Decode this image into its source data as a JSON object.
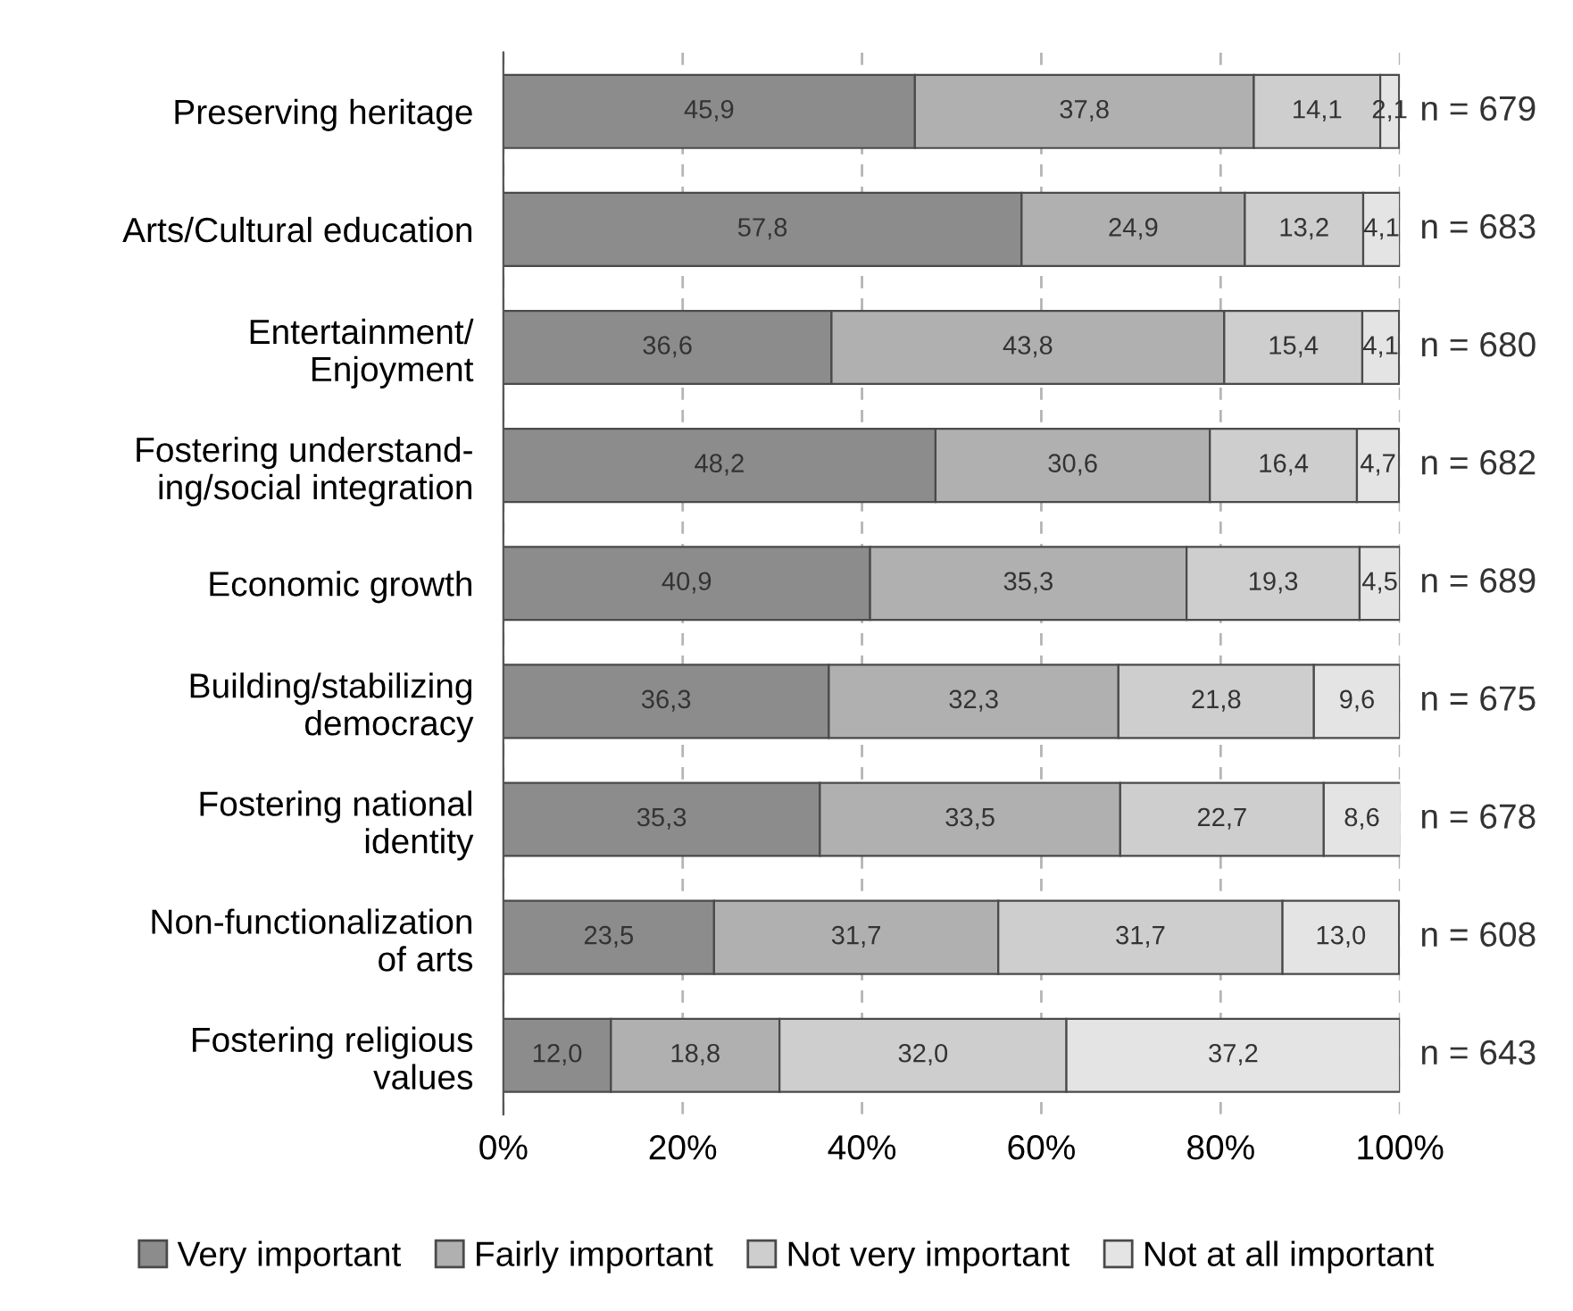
{
  "chart_data": {
    "type": "bar",
    "orientation": "horizontal",
    "stacked": true,
    "categories": [
      "Preserving heritage",
      "Arts/Cultural education",
      "Entertainment/\nEnjoyment",
      "Fostering understand-\ning/social integration",
      "Economic growth",
      "Building/stabilizing\ndemocracy",
      "Fostering national\nidentity",
      "Non-functionalization\nof arts",
      "Fostering religious\nvalues"
    ],
    "series": [
      {
        "name": "Very important",
        "color": "#8c8c8c",
        "values": [
          45.9,
          57.8,
          36.6,
          48.2,
          40.9,
          36.3,
          35.3,
          23.5,
          12.0
        ],
        "value_labels": [
          "45,9",
          "57,8",
          "36,6",
          "48,2",
          "40,9",
          "36,3",
          "35,3",
          "23,5",
          "12,0"
        ]
      },
      {
        "name": "Fairly important",
        "color": "#b0b0b0",
        "values": [
          37.8,
          24.9,
          43.8,
          30.6,
          35.3,
          32.3,
          33.5,
          31.7,
          18.8
        ],
        "value_labels": [
          "37,8",
          "24,9",
          "43,8",
          "30,6",
          "35,3",
          "32,3",
          "33,5",
          "31,7",
          "18,8"
        ]
      },
      {
        "name": "Not very important",
        "color": "#cecece",
        "values": [
          14.1,
          13.2,
          15.4,
          16.4,
          19.3,
          21.8,
          22.7,
          31.7,
          32.0
        ],
        "value_labels": [
          "14,1",
          "13,2",
          "15,4",
          "16,4",
          "19,3",
          "21,8",
          "22,7",
          "31,7",
          "32,0"
        ]
      },
      {
        "name": "Not at all important",
        "color": "#e4e4e4",
        "values": [
          2.1,
          4.1,
          4.1,
          4.7,
          4.5,
          9.6,
          8.6,
          13.0,
          37.2
        ],
        "value_labels": [
          "2,1",
          "4,1",
          "4,1",
          "4,7",
          "4,5",
          "9,6",
          "8,6",
          "13,0",
          "37,2"
        ]
      }
    ],
    "xlim": [
      0,
      100
    ],
    "xticks": [
      {
        "value": 0,
        "label": "0%"
      },
      {
        "value": 20,
        "label": "20%"
      },
      {
        "value": 40,
        "label": "40%"
      },
      {
        "value": 60,
        "label": "60%"
      },
      {
        "value": 80,
        "label": "80%"
      },
      {
        "value": 100,
        "label": "100%"
      }
    ],
    "grid": "x",
    "legend": "bottom",
    "annotations": [
      "n = 679",
      "n = 683",
      "n = 680",
      "n = 682",
      "n = 689",
      "n = 675",
      "n = 678",
      "n = 608",
      "n = 643"
    ]
  }
}
